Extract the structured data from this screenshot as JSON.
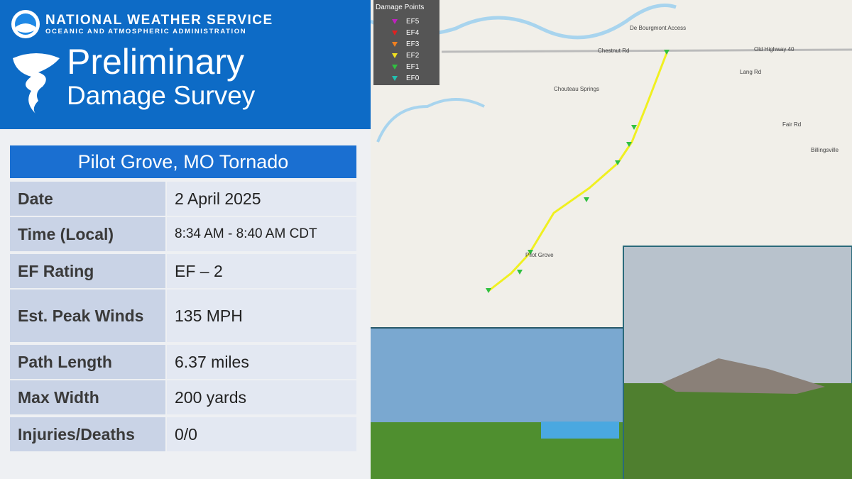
{
  "header": {
    "agency": "NATIONAL WEATHER SERVICE",
    "subagency": "OCEANIC AND ATMOSPHERIC ADMINISTRATION",
    "title_line1": "Preliminary",
    "title_line2": "Damage Survey"
  },
  "table": {
    "title": "Pilot Grove, MO Tornado",
    "rows": [
      [
        "Date",
        "2 April 2025"
      ],
      [
        "Time (Local)",
        "8:34 AM - 8:40 AM CDT"
      ],
      [
        "EF Rating",
        "EF – 2"
      ],
      [
        "Est. Peak Winds",
        "135 MPH"
      ],
      [
        "Path Length",
        "6.37 miles"
      ],
      [
        "Max Width",
        "200 yards"
      ],
      [
        "Injuries/Deaths",
        "0/0"
      ]
    ]
  },
  "map": {
    "legend": {
      "title": "Damage Points",
      "items": [
        {
          "label": "EF5",
          "color": "#c020c0"
        },
        {
          "label": "EF4",
          "color": "#e02020"
        },
        {
          "label": "EF3",
          "color": "#f08020"
        },
        {
          "label": "EF2",
          "color": "#f0e020"
        },
        {
          "label": "EF1",
          "color": "#30c040"
        },
        {
          "label": "EF0",
          "color": "#20c0b0"
        }
      ]
    },
    "places": [
      "De Bourgmont Access",
      "Chouteau Springs",
      "Pilot Grove",
      "Chestnut Rd",
      "Old Highway 40",
      "Lang Rd",
      "Fair Rd",
      "Billingsville"
    ]
  }
}
